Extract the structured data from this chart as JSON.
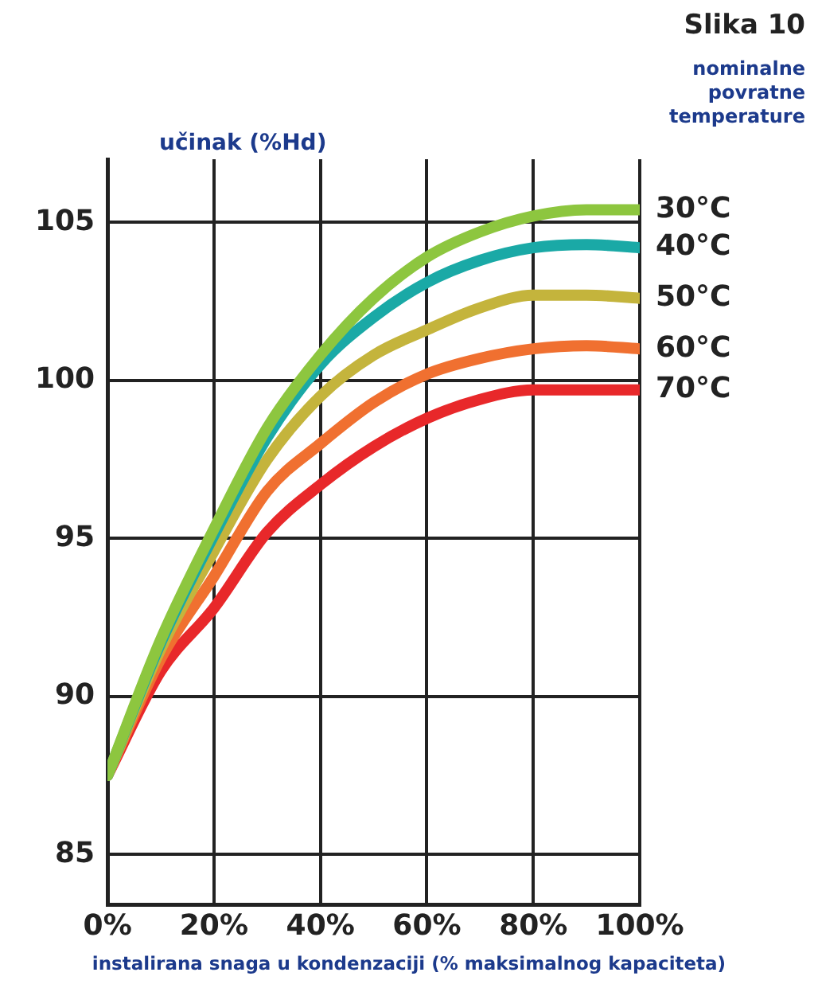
{
  "chart_data": {
    "type": "line",
    "title": "Slika 10",
    "legend_title": "nominalne povratne temperature",
    "ylabel": "učinak (%Hd)",
    "xlabel": "instalirana snaga u kondenzaciji (% maksimalnog kapaciteta)",
    "x": [
      0,
      10,
      20,
      30,
      40,
      50,
      60,
      70,
      80,
      90,
      100
    ],
    "series": [
      {
        "name": "30°C",
        "color": "#8dc63f",
        "values": [
          87.5,
          91.8,
          95.3,
          98.5,
          100.8,
          102.6,
          103.9,
          104.7,
          105.2,
          105.4,
          105.4
        ]
      },
      {
        "name": "40°C",
        "color": "#1aa9a6",
        "values": [
          87.5,
          91.7,
          95.1,
          98.2,
          100.5,
          102.0,
          103.1,
          103.8,
          104.2,
          104.3,
          104.2
        ]
      },
      {
        "name": "50°C",
        "color": "#c4b43c",
        "values": [
          87.5,
          91.5,
          94.6,
          97.5,
          99.5,
          100.8,
          101.6,
          102.3,
          102.7,
          102.7,
          102.6
        ]
      },
      {
        "name": "60°C",
        "color": "#f07030",
        "values": [
          87.5,
          91.2,
          93.8,
          96.5,
          98.0,
          99.3,
          100.2,
          100.7,
          101.0,
          101.1,
          101.0
        ]
      },
      {
        "name": "70°C",
        "color": "#e8282a",
        "values": [
          87.5,
          90.8,
          92.8,
          95.2,
          96.7,
          97.9,
          98.8,
          99.4,
          99.7,
          99.7,
          99.7
        ]
      }
    ],
    "xlim": [
      0,
      100
    ],
    "ylim": [
      83.4,
      107
    ],
    "xticks": [
      {
        "value": 0,
        "label": "0%"
      },
      {
        "value": 20,
        "label": "20%"
      },
      {
        "value": 40,
        "label": "40%"
      },
      {
        "value": 60,
        "label": "60%"
      },
      {
        "value": 80,
        "label": "80%"
      },
      {
        "value": 100,
        "label": "100%"
      }
    ],
    "yticks": [
      85,
      90,
      95,
      100,
      105
    ],
    "grid": true,
    "legend": false,
    "marker": "none",
    "line_style": "solid"
  }
}
